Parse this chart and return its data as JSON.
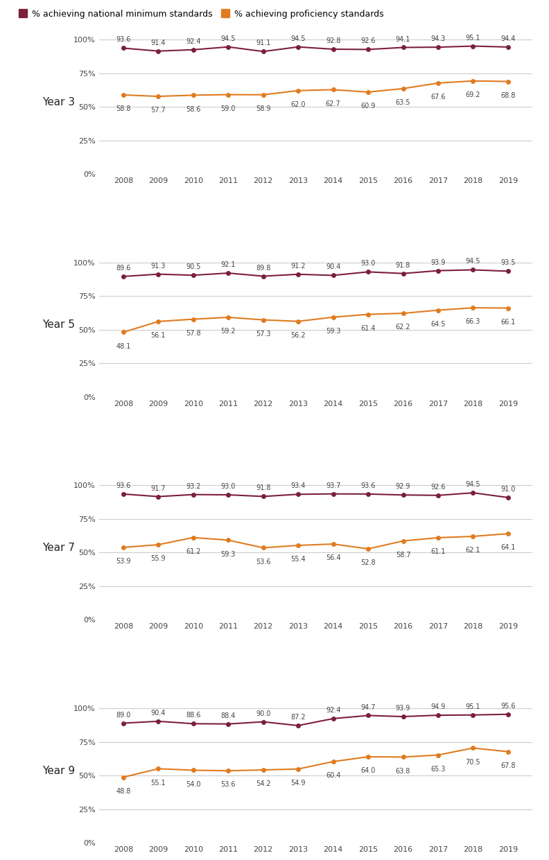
{
  "years": [
    2008,
    2009,
    2010,
    2011,
    2012,
    2013,
    2014,
    2015,
    2016,
    2017,
    2018,
    2019
  ],
  "panels": [
    {
      "label": "Year 3",
      "national_min": [
        93.6,
        91.4,
        92.4,
        94.5,
        91.1,
        94.5,
        92.8,
        92.6,
        94.1,
        94.3,
        95.1,
        94.4
      ],
      "proficiency": [
        58.8,
        57.7,
        58.6,
        59.0,
        58.9,
        62.0,
        62.7,
        60.9,
        63.5,
        67.6,
        69.2,
        68.8
      ]
    },
    {
      "label": "Year 5",
      "national_min": [
        89.6,
        91.3,
        90.5,
        92.1,
        89.8,
        91.2,
        90.4,
        93.0,
        91.8,
        93.9,
        94.5,
        93.5
      ],
      "proficiency": [
        48.1,
        56.1,
        57.8,
        59.2,
        57.3,
        56.2,
        59.3,
        61.4,
        62.2,
        64.5,
        66.3,
        66.1
      ]
    },
    {
      "label": "Year 7",
      "national_min": [
        93.6,
        91.7,
        93.2,
        93.0,
        91.8,
        93.4,
        93.7,
        93.6,
        92.9,
        92.6,
        94.5,
        91.0
      ],
      "proficiency": [
        53.9,
        55.9,
        61.2,
        59.3,
        53.6,
        55.4,
        56.4,
        52.8,
        58.7,
        61.1,
        62.1,
        64.1
      ]
    },
    {
      "label": "Year 9",
      "national_min": [
        89.0,
        90.4,
        88.6,
        88.4,
        90.0,
        87.2,
        92.4,
        94.7,
        93.9,
        94.9,
        95.1,
        95.6
      ],
      "proficiency": [
        48.8,
        55.1,
        54.0,
        53.6,
        54.2,
        54.9,
        60.4,
        64.0,
        63.8,
        65.3,
        70.5,
        67.8
      ]
    }
  ],
  "color_national_min": "#7B1F3A",
  "color_proficiency": "#E07B20",
  "background_color": "#FFFFFF",
  "yticks": [
    0,
    25,
    50,
    75,
    100
  ],
  "ylim": [
    0,
    107
  ],
  "legend_labels": [
    "% achieving national minimum standards",
    "% achieving proficiency standards"
  ]
}
